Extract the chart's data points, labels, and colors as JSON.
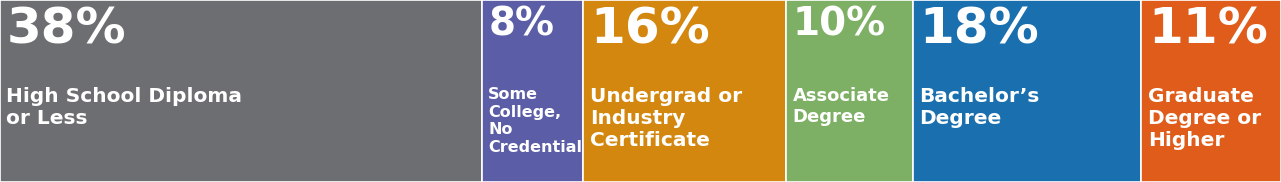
{
  "segments": [
    {
      "pct": "38%",
      "label": "High School Diploma\nor Less",
      "value": 38,
      "color": "#6d6e71",
      "label_fontsize": 14.5,
      "pct_fontsize": 36
    },
    {
      "pct": "8%",
      "label": "Some\nCollege,\nNo\nCredential",
      "value": 8,
      "color": "#5b5ea6",
      "label_fontsize": 11.5,
      "pct_fontsize": 28
    },
    {
      "pct": "16%",
      "label": "Undergrad or\nIndustry\nCertificate",
      "value": 16,
      "color": "#d4870e",
      "label_fontsize": 14.5,
      "pct_fontsize": 36
    },
    {
      "pct": "10%",
      "label": "Associate\nDegree",
      "value": 10,
      "color": "#7db065",
      "label_fontsize": 13,
      "pct_fontsize": 28
    },
    {
      "pct": "18%",
      "label": "Bachelor’s\nDegree",
      "value": 18,
      "color": "#1a6faf",
      "label_fontsize": 14.5,
      "pct_fontsize": 36
    },
    {
      "pct": "11%",
      "label": "Graduate\nDegree or\nHigher",
      "value": 11,
      "color": "#e05c1a",
      "label_fontsize": 14.5,
      "pct_fontsize": 36
    }
  ],
  "text_color": "#ffffff",
  "figsize": [
    12.81,
    1.82
  ],
  "dpi": 100
}
